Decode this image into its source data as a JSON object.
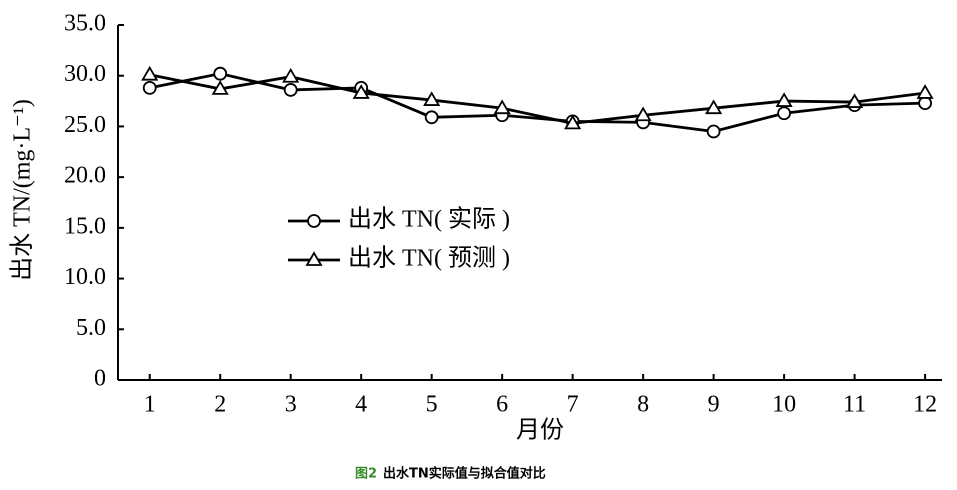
{
  "chart_data": {
    "type": "line",
    "y_label": "出水 TN/(mg·L⁻¹)",
    "x_label": "月份",
    "caption_label": "图2",
    "caption_text": "出水TN实际值与拟合值对比",
    "x": [
      1,
      2,
      3,
      4,
      5,
      6,
      7,
      8,
      9,
      10,
      11,
      12
    ],
    "xlim": [
      0.55,
      12.24
    ],
    "xticks": [
      1,
      2,
      3,
      4,
      5,
      6,
      7,
      8,
      9,
      10,
      11,
      12
    ],
    "ylim": [
      0,
      35
    ],
    "yticks": [
      0,
      {
        "value": 5,
        "label": "5.0"
      },
      {
        "value": 10,
        "label": "10.0"
      },
      {
        "value": 15,
        "label": "15.0"
      },
      {
        "value": 20,
        "label": "20.0"
      },
      {
        "value": 25,
        "label": "25.0"
      },
      {
        "value": 30,
        "label": "30.0"
      },
      {
        "value": 35,
        "label": "35.0"
      }
    ],
    "legend": "center-left",
    "series": [
      {
        "name": "出水 TN( 实际 )",
        "color": "#000000",
        "marker": "circle",
        "values": [
          28.8,
          30.2,
          28.6,
          28.8,
          25.9,
          26.1,
          25.5,
          25.4,
          24.5,
          26.3,
          27.1,
          27.3
        ]
      },
      {
        "name": "出水 TN( 预测 )",
        "color": "#000000",
        "marker": "triangle",
        "values": [
          30.1,
          28.7,
          29.9,
          28.3,
          27.6,
          26.8,
          25.3,
          26.1,
          26.8,
          27.5,
          27.4,
          28.3
        ]
      }
    ]
  }
}
